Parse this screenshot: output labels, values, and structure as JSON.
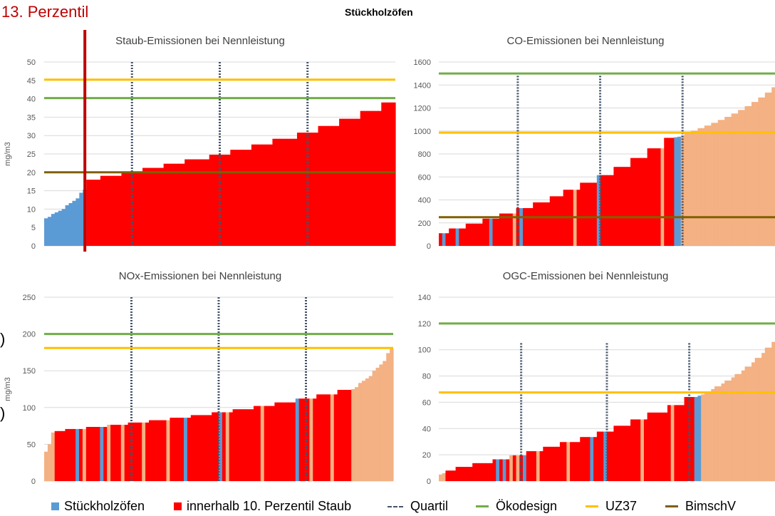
{
  "page": {
    "heading": "13. Perzentil",
    "title": "Stückholzöfen",
    "edge_text": [
      ")",
      ")"
    ]
  },
  "colors": {
    "blue": "#5b9bd5",
    "red": "#ff0000",
    "salmon": "#f4b183",
    "oekodesign": "#70ad47",
    "uz37": "#ffc000",
    "bimschv": "#806000",
    "quartil": "#44546a",
    "cutoff": "#c00000",
    "grid": "#d9d9d9"
  },
  "legend": [
    {
      "label": "Stückholzöfen",
      "color": "#5b9bd5",
      "kind": "box"
    },
    {
      "label": "innerhalb 10. Perzentil Staub",
      "color": "#ff0000",
      "kind": "box"
    },
    {
      "label": "Quartil",
      "color": "#44546a",
      "kind": "dash"
    },
    {
      "label": "Ökodesign",
      "color": "#70ad47",
      "kind": "line"
    },
    {
      "label": "UZ37",
      "color": "#ffc000",
      "kind": "line"
    },
    {
      "label": "BimschV",
      "color": "#806000",
      "kind": "line"
    }
  ],
  "chart_data": [
    {
      "id": "staub",
      "type": "bar",
      "title": "Staub-Emissionen bei Nennleistung",
      "ylabel": "mg/m3",
      "ylim": [
        0,
        50
      ],
      "yticks": [
        0,
        5,
        10,
        15,
        20,
        25,
        30,
        35,
        40,
        45,
        50
      ],
      "grid": true,
      "n": 100,
      "segments": [
        {
          "from": 0,
          "to": 12,
          "y0": 7.5,
          "y1": 15.3,
          "color": "blue"
        },
        {
          "from": 12,
          "to": 100,
          "y0": 18,
          "y1": 39,
          "color": "red"
        }
      ],
      "quartiles": [
        25,
        50,
        75
      ],
      "quartile_height": 50,
      "cutoff_at": 12,
      "reference_lines": [
        {
          "name": "UZ37",
          "value": 45.2
        },
        {
          "name": "Ökodesign",
          "value": 40.2
        },
        {
          "name": "BimschV",
          "value": 20
        }
      ]
    },
    {
      "id": "co",
      "type": "bar",
      "title": "CO-Emissionen bei Nennleistung",
      "ylabel": "",
      "ylim": [
        0,
        1600
      ],
      "yticks": [
        0,
        200,
        400,
        600,
        800,
        1000,
        1200,
        1400,
        1600
      ],
      "grid": true,
      "n": 100,
      "segments": [
        {
          "from": 0,
          "to": 70,
          "y0": 110,
          "y1": 940,
          "color": "red"
        },
        {
          "from": 70,
          "to": 72,
          "y0": 945,
          "y1": 950,
          "color": "blue"
        },
        {
          "from": 72,
          "to": 100,
          "y0": 960,
          "y1": 1380,
          "color": "salmon"
        }
      ],
      "highlights": [
        {
          "i": 1,
          "color": "blue"
        },
        {
          "i": 5,
          "color": "blue"
        },
        {
          "i": 15,
          "color": "blue"
        },
        {
          "i": 22,
          "color": "salmon"
        },
        {
          "i": 24,
          "color": "blue"
        },
        {
          "i": 40,
          "color": "salmon"
        },
        {
          "i": 47,
          "color": "blue"
        },
        {
          "i": 66,
          "color": "salmon"
        }
      ],
      "quartiles": [
        23.5,
        48,
        72.5
      ],
      "quartile_height": 1480,
      "reference_lines": [
        {
          "name": "Ökodesign",
          "value": 1500
        },
        {
          "name": "UZ37",
          "value": 985
        },
        {
          "name": "BimschV",
          "value": 250
        }
      ]
    },
    {
      "id": "nox",
      "type": "bar",
      "title": "NOx-Emissionen bei Nennleistung",
      "ylabel": "mg/m3",
      "ylim": [
        0,
        250
      ],
      "yticks": [
        0,
        50,
        100,
        150,
        200,
        250
      ],
      "grid": true,
      "n": 100,
      "segments": [
        {
          "from": 0,
          "to": 3,
          "y0": 40,
          "y1": 66,
          "color": "salmon"
        },
        {
          "from": 3,
          "to": 88,
          "y0": 68,
          "y1": 124,
          "color": "red"
        },
        {
          "from": 88,
          "to": 100,
          "y0": 125,
          "y1": 180,
          "color": "salmon"
        }
      ],
      "highlights": [
        {
          "i": 9,
          "color": "blue"
        },
        {
          "i": 11,
          "color": "salmon"
        },
        {
          "i": 16,
          "color": "blue"
        },
        {
          "i": 18,
          "color": "salmon"
        },
        {
          "i": 22,
          "color": "salmon"
        },
        {
          "i": 28,
          "color": "salmon"
        },
        {
          "i": 35,
          "color": "salmon"
        },
        {
          "i": 40,
          "color": "blue"
        },
        {
          "i": 50,
          "color": "blue"
        },
        {
          "i": 52,
          "color": "salmon"
        },
        {
          "i": 62,
          "color": "salmon"
        },
        {
          "i": 72,
          "color": "blue"
        },
        {
          "i": 76,
          "color": "salmon"
        },
        {
          "i": 82,
          "color": "salmon"
        }
      ],
      "quartiles": [
        25,
        50,
        75
      ],
      "quartile_height": 250,
      "reference_lines": [
        {
          "name": "Ökodesign",
          "value": 200
        },
        {
          "name": "UZ37",
          "value": 181
        }
      ]
    },
    {
      "id": "ogc",
      "type": "bar",
      "title": "OGC-Emissionen bei Nennleistung",
      "ylabel": "",
      "ylim": [
        0,
        140
      ],
      "yticks": [
        0,
        20,
        40,
        60,
        80,
        100,
        120,
        140
      ],
      "grid": true,
      "n": 100,
      "segments": [
        {
          "from": 0,
          "to": 2,
          "y0": 5,
          "y1": 6,
          "color": "salmon"
        },
        {
          "from": 2,
          "to": 76,
          "y0": 8,
          "y1": 64,
          "color": "red"
        },
        {
          "from": 76,
          "to": 78,
          "y0": 64,
          "y1": 65,
          "color": "blue"
        },
        {
          "from": 78,
          "to": 100,
          "y0": 66,
          "y1": 106,
          "color": "salmon"
        }
      ],
      "highlights": [
        {
          "i": 17,
          "color": "blue"
        },
        {
          "i": 19,
          "color": "blue"
        },
        {
          "i": 21,
          "color": "salmon"
        },
        {
          "i": 23,
          "color": "salmon"
        },
        {
          "i": 25,
          "color": "blue"
        },
        {
          "i": 29,
          "color": "salmon"
        },
        {
          "i": 38,
          "color": "salmon"
        },
        {
          "i": 45,
          "color": "blue"
        },
        {
          "i": 49,
          "color": "blue"
        },
        {
          "i": 60,
          "color": "salmon"
        },
        {
          "i": 69,
          "color": "salmon"
        }
      ],
      "quartiles": [
        24.5,
        50,
        74.5
      ],
      "quartile_height": 105,
      "reference_lines": [
        {
          "name": "Ökodesign",
          "value": 120
        },
        {
          "name": "UZ37",
          "value": 67.5
        }
      ]
    }
  ]
}
